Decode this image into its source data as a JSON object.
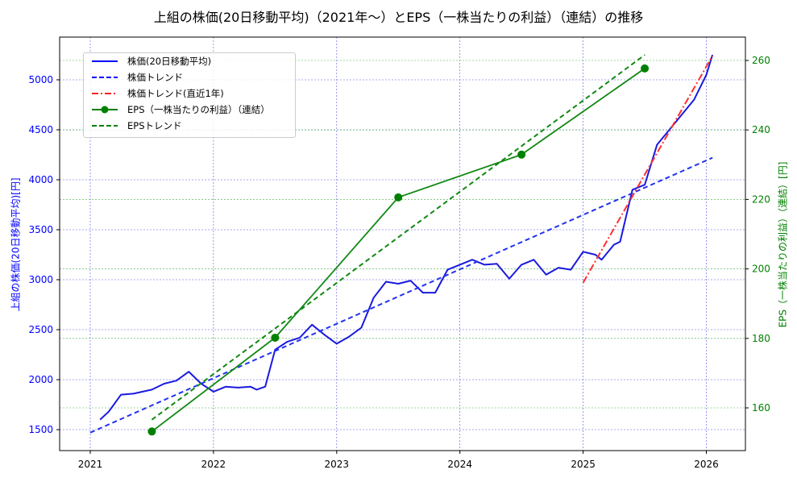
{
  "title": "上組の株価(20日移動平均)（2021年〜）とEPS（一株当たりの利益）（連結）の推移",
  "legend": {
    "items": [
      {
        "label": "株価(20日移動平均)",
        "color": "#0000ff",
        "style": "solid"
      },
      {
        "label": "株価トレンド",
        "color": "#0000ff",
        "style": "dashed"
      },
      {
        "label": "株価トレンド(直近1年)",
        "color": "#ff0000",
        "style": "dashdot"
      },
      {
        "label": "EPS（一株当たりの利益）（連結）",
        "color": "#008000",
        "style": "solid-marker"
      },
      {
        "label": "EPSトレンド",
        "color": "#008000",
        "style": "dashed"
      }
    ]
  },
  "axes": {
    "left_label": "上組の株価(20日移動平均)[円]",
    "right_label": "EPS（一株当たりの利益）（連結）[円]",
    "left_ticks": [
      "1500",
      "2000",
      "2500",
      "3000",
      "3500",
      "4000",
      "4500",
      "5000"
    ],
    "right_ticks": [
      "160",
      "180",
      "200",
      "220",
      "240",
      "260"
    ],
    "x_ticks": [
      "2021",
      "2022",
      "2023",
      "2024",
      "2025",
      "2026"
    ],
    "left_color": "#0000ff",
    "right_color": "#008000"
  },
  "chart_data": {
    "type": "line",
    "title": "上組の株価(20日移動平均)（2021年〜）とEPS（一株当たりの利益）（連結）の推移",
    "xlabel": "",
    "ylabel": "上組の株価(20日移動平均)[円]",
    "ylabel_right": "EPS（一株当たりの利益）（連結）[円]",
    "xlim": [
      2020.75,
      2026.3
    ],
    "ylim": [
      1300,
      5380
    ],
    "ylim_right": [
      149,
      265
    ],
    "grid": true,
    "legend_position": "upper left",
    "series": [
      {
        "name": "株価(20日移動平均)",
        "axis": "left",
        "x": [
          2021.08,
          2021.15,
          2021.25,
          2021.35,
          2021.5,
          2021.6,
          2021.7,
          2021.8,
          2021.9,
          2022.0,
          2022.1,
          2022.2,
          2022.3,
          2022.35,
          2022.42,
          2022.5,
          2022.6,
          2022.7,
          2022.8,
          2022.9,
          2023.0,
          2023.1,
          2023.2,
          2023.3,
          2023.4,
          2023.5,
          2023.6,
          2023.7,
          2023.8,
          2023.9,
          2024.0,
          2024.1,
          2024.2,
          2024.3,
          2024.4,
          2024.5,
          2024.6,
          2024.7,
          2024.8,
          2024.9,
          2025.0,
          2025.1,
          2025.15,
          2025.25,
          2025.3,
          2025.4,
          2025.5,
          2025.6,
          2025.7,
          2025.8,
          2025.9,
          2026.0,
          2026.05
        ],
        "values": [
          1600,
          1680,
          1850,
          1860,
          1900,
          1960,
          1990,
          2080,
          1960,
          1880,
          1930,
          1920,
          1930,
          1900,
          1930,
          2300,
          2380,
          2420,
          2550,
          2450,
          2360,
          2430,
          2520,
          2820,
          2980,
          2960,
          2990,
          2870,
          2870,
          3100,
          3150,
          3200,
          3150,
          3160,
          3010,
          3150,
          3200,
          3050,
          3120,
          3100,
          3280,
          3250,
          3200,
          3350,
          3380,
          3900,
          3950,
          4350,
          4500,
          4650,
          4800,
          5050,
          5250
        ]
      },
      {
        "name": "株価トレンド",
        "axis": "left",
        "x": [
          2021.0,
          2026.05
        ],
        "values": [
          1470,
          4220
        ]
      },
      {
        "name": "株価トレンド(直近1年)",
        "axis": "left",
        "x": [
          2025.0,
          2026.05
        ],
        "values": [
          2970,
          5240
        ]
      },
      {
        "name": "EPS（一株当たりの利益）（連結）",
        "axis": "right",
        "x": [
          2021.5,
          2022.5,
          2023.5,
          2024.5,
          2025.5
        ],
        "values": [
          153.2,
          180.2,
          220.6,
          232.9,
          257.7
        ]
      },
      {
        "name": "EPSトレンド",
        "axis": "right",
        "x": [
          2021.5,
          2025.5
        ],
        "values": [
          156.6,
          261.6
        ]
      }
    ]
  }
}
